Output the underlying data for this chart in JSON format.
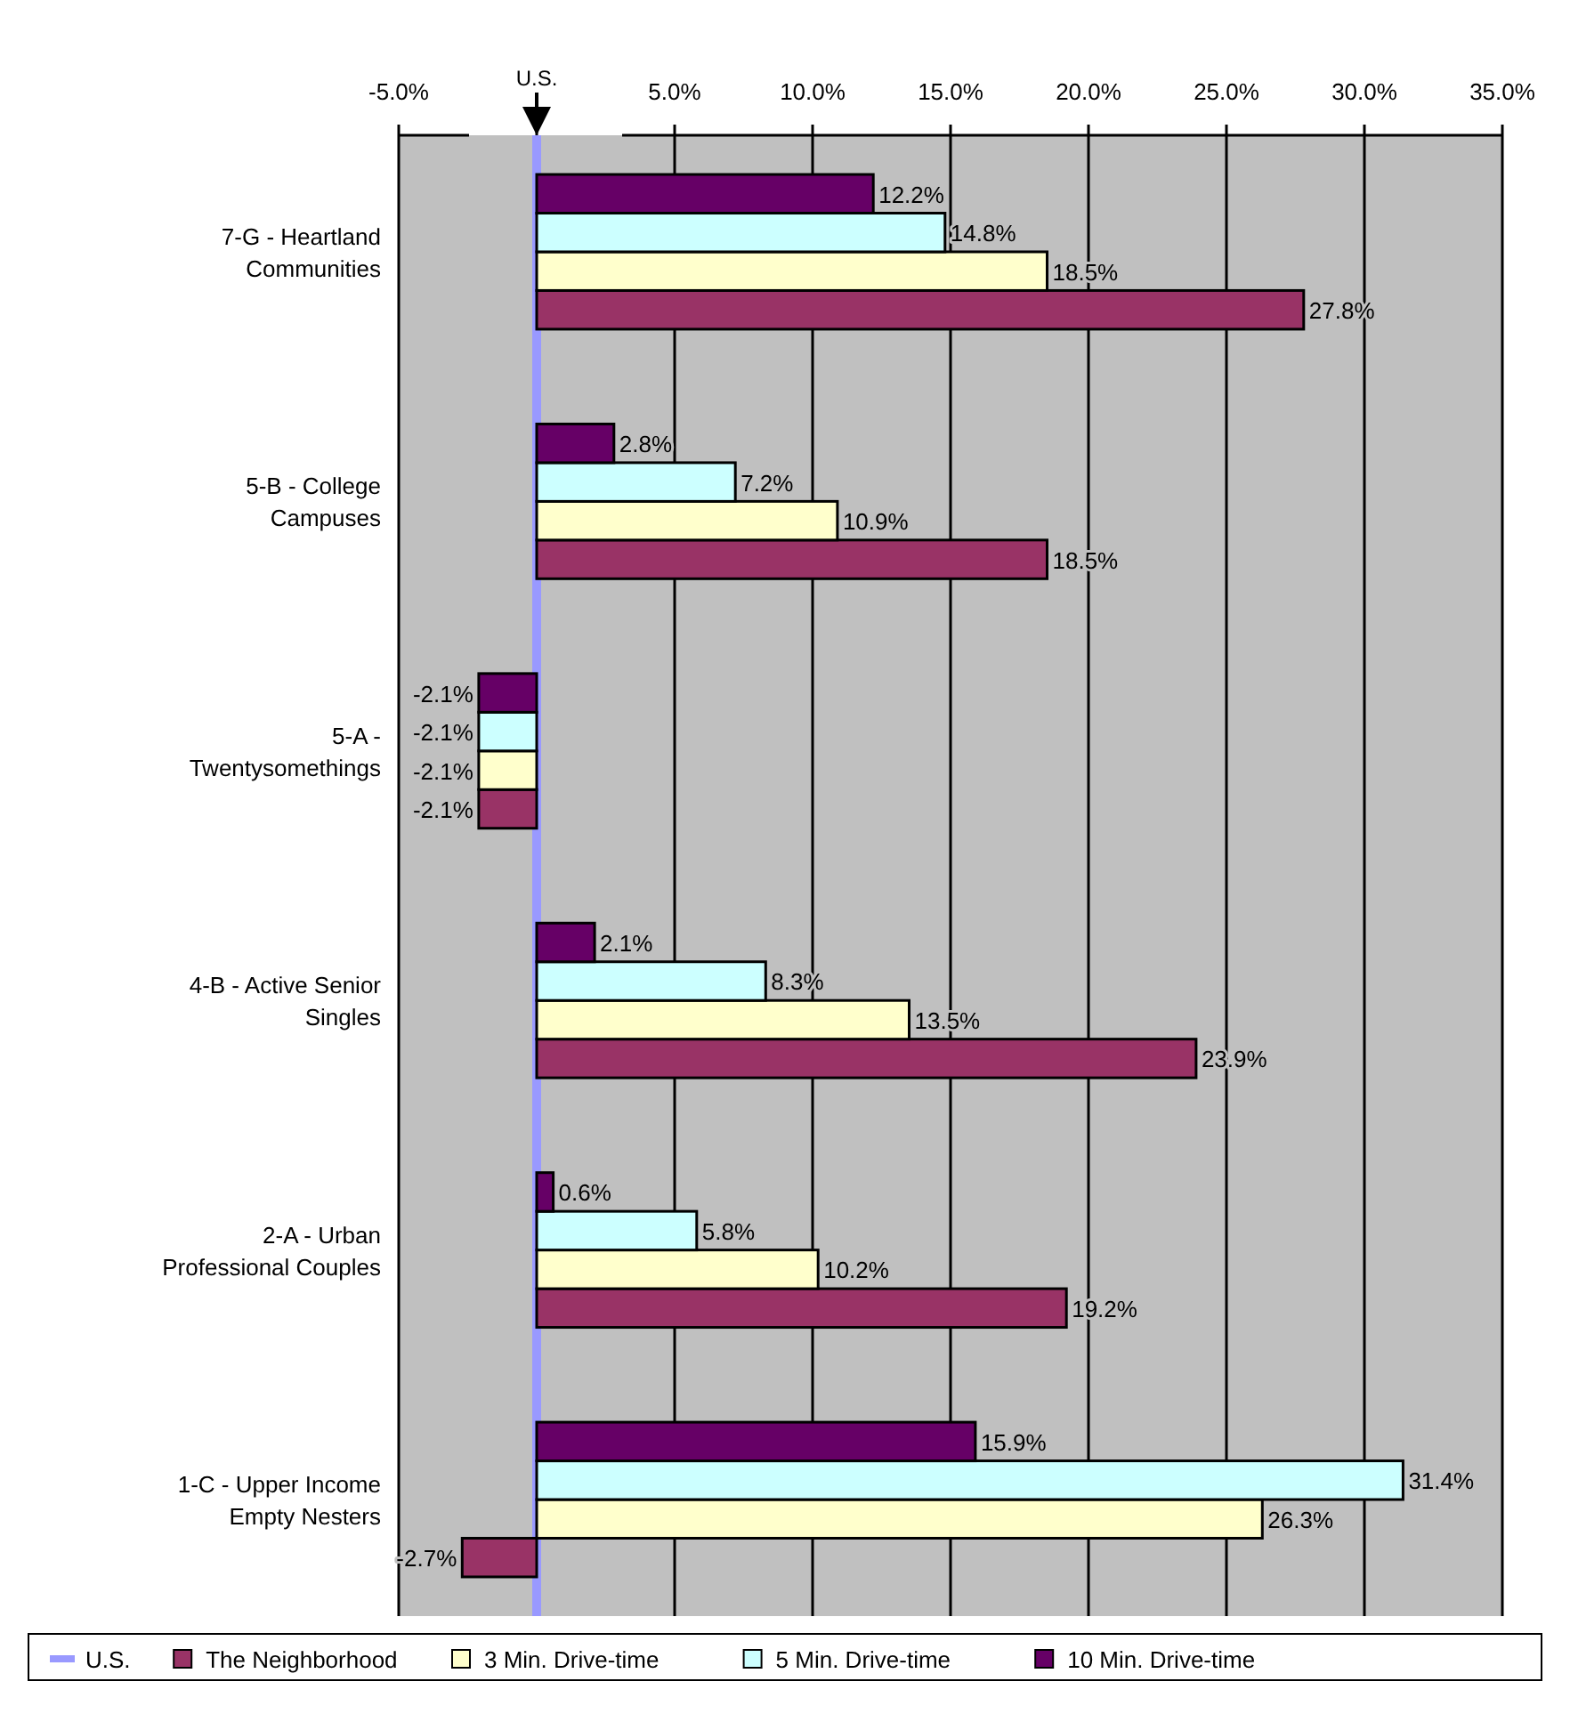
{
  "chart_data": {
    "type": "bar",
    "orientation": "horizontal",
    "categories": [
      "7-G - Heartland Communities",
      "5-B - College Campuses",
      "5-A - Twentysomethings",
      "4-B - Active Senior Singles",
      "2-A - Urban Professional Couples",
      "1-C - Upper Income Empty Nesters"
    ],
    "series": [
      {
        "name": "The Neighborhood",
        "color": "#993366",
        "values": [
          27.8,
          18.5,
          -2.1,
          23.9,
          19.2,
          -2.7
        ],
        "value_labels": [
          "27.8%",
          "18.5%",
          "-2.1%",
          "23.9%",
          "19.2%",
          "-2.7%"
        ]
      },
      {
        "name": "3 Min. Drive-time",
        "color": "#ffffcc",
        "values": [
          18.5,
          10.9,
          -2.1,
          13.5,
          10.2,
          26.3
        ],
        "value_labels": [
          "18.5%",
          "10.9%",
          "-2.1%",
          "13.5%",
          "10.2%",
          "26.3%"
        ]
      },
      {
        "name": "5 Min. Drive-time",
        "color": "#ccffff",
        "values": [
          14.8,
          7.2,
          -2.1,
          8.3,
          5.8,
          31.4
        ],
        "value_labels": [
          "14.8%",
          "7.2%",
          "-2.1%",
          "8.3%",
          "5.8%",
          "31.4%"
        ]
      },
      {
        "name": "10 Min. Drive-time",
        "color": "#660066",
        "values": [
          12.2,
          2.8,
          -2.1,
          2.1,
          0.6,
          15.9
        ],
        "value_labels": [
          "12.2%",
          "2.8%",
          "-2.1%",
          "2.1%",
          "0.6%",
          "15.9%"
        ]
      }
    ],
    "xlim": [
      -5,
      35
    ],
    "xticks": [
      {
        "value": -5,
        "label": "-5.0%"
      },
      {
        "value": 0,
        "label": null
      },
      {
        "value": 5,
        "label": "5.0%"
      },
      {
        "value": 10,
        "label": "10.0%"
      },
      {
        "value": 15,
        "label": "15.0%"
      },
      {
        "value": 20,
        "label": "20.0%"
      },
      {
        "value": 25,
        "label": "25.0%"
      },
      {
        "value": 30,
        "label": "30.0%"
      },
      {
        "value": 35,
        "label": "35.0%"
      }
    ],
    "ref_lines": [
      {
        "axis": "x",
        "value": 0,
        "label": "U.S.",
        "color": "#9999ff"
      }
    ],
    "grid": "x",
    "legend": "bottom"
  }
}
